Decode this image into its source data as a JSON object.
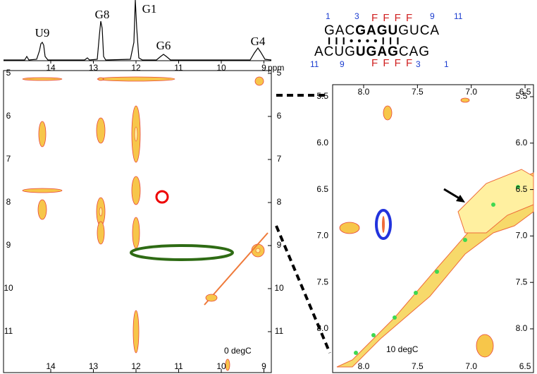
{
  "top_spectrum": {
    "peaks": [
      "U9",
      "G8",
      "G1",
      "G6",
      "G4"
    ],
    "xticks": [
      14,
      13,
      12,
      11,
      10,
      9
    ],
    "unit": "ppm"
  },
  "left_panel": {
    "xticks": [
      14,
      13,
      12,
      11,
      10,
      9
    ],
    "yticks": [
      5,
      6,
      7,
      8,
      9,
      10,
      11
    ],
    "annotation": "0 degC"
  },
  "right_panel": {
    "xticks": [
      {
        "value": 8,
        "label": "8.0"
      },
      {
        "value": 7.5,
        "label": "7.5"
      },
      {
        "value": 7,
        "label": "7.0"
      },
      {
        "value": 6.5,
        "label": "6.5"
      }
    ],
    "yticks": [
      {
        "value": 5.5,
        "label": "5.5"
      },
      {
        "value": 6,
        "label": "6.0"
      },
      {
        "value": 6.5,
        "label": "6.5"
      },
      {
        "value": 7,
        "label": "7.0"
      },
      {
        "value": 7.5,
        "label": "7.5"
      },
      {
        "value": 8,
        "label": "8.0"
      }
    ],
    "annotation": "10 degC"
  },
  "sequence": {
    "top_numbers": [
      "1",
      "3",
      "9",
      "11"
    ],
    "top_marks": "F F F F",
    "top_strand": [
      "GAC",
      "GAGU",
      "GUCA"
    ],
    "pairs": "I I I • • • • I I I",
    "bottom_strand": [
      "ACUG",
      "UGAG",
      "CAG"
    ],
    "bottom_marks": "F F F F",
    "bottom_numbers": [
      "11",
      "9",
      "3",
      "1"
    ]
  }
}
